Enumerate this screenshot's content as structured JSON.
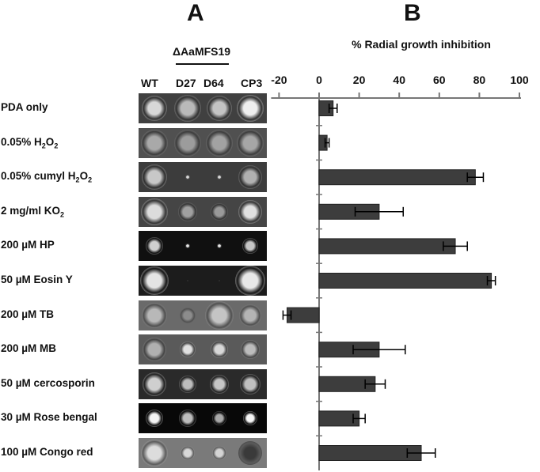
{
  "panels": {
    "a": "A",
    "b": "B"
  },
  "mutant_group_label": "ΔAaMFS19",
  "strains": [
    "WT",
    "D27",
    "D64",
    "CP3"
  ],
  "chart_data": {
    "type": "bar",
    "orientation": "horizontal",
    "title": "% Radial growth inhibition",
    "xlabel": "% Radial growth inhibition",
    "xlim": [
      -20,
      100
    ],
    "xticks": [
      "-20",
      "0",
      "20",
      "40",
      "60",
      "80",
      "100"
    ],
    "xtick_values": [
      -20,
      0,
      20,
      40,
      60,
      80,
      100
    ],
    "categories": [
      {
        "pre": "PDA only",
        "sub": "",
        "post": ""
      },
      {
        "pre": "0.05% H",
        "sub": "2",
        "post": "O",
        "sub2": "2"
      },
      {
        "pre": "0.05% cumyl H",
        "sub": "2",
        "post": "O",
        "sub2": "2"
      },
      {
        "pre": "2 mg/ml KO",
        "sub": "2",
        "post": ""
      },
      {
        "pre": "200 µM HP",
        "sub": "",
        "post": ""
      },
      {
        "pre": "50 µM Eosin Y",
        "sub": "",
        "post": ""
      },
      {
        "pre": "200 µM TB",
        "sub": "",
        "post": ""
      },
      {
        "pre": "200 µM MB",
        "sub": "",
        "post": ""
      },
      {
        "pre": "50 µM cercosporin",
        "sub": "",
        "post": ""
      },
      {
        "pre": "30 µM  Rose bengal",
        "sub": "",
        "post": ""
      },
      {
        "pre": "100 µM Congo red",
        "sub": "",
        "post": ""
      }
    ],
    "values": [
      7,
      4,
      78,
      30,
      68,
      86,
      -16,
      30,
      28,
      20,
      51
    ],
    "errors": [
      2,
      1,
      4,
      12,
      6,
      2,
      2,
      13,
      5,
      3,
      7
    ],
    "bar_color": "#3d3d3d",
    "grid": false,
    "legend": "none"
  },
  "plates": [
    {
      "bg": "#404040",
      "colonies": [
        {
          "c": "#d8d8d8",
          "r": 16
        },
        {
          "c": "#b9b9b9",
          "r": 17
        },
        {
          "c": "#c4c4c4",
          "r": 16
        },
        {
          "c": "#efefef",
          "r": 17
        }
      ]
    },
    {
      "bg": "#505050",
      "colonies": [
        {
          "c": "#a9a9a9",
          "r": 17
        },
        {
          "c": "#9c9c9c",
          "r": 17
        },
        {
          "c": "#a2a2a2",
          "r": 17
        },
        {
          "c": "#a6a6a6",
          "r": 17
        }
      ]
    },
    {
      "bg": "#3c3c3c",
      "colonies": [
        {
          "c": "#c8c8c8",
          "r": 16
        },
        {
          "c": "#d9d9d9",
          "r": 3
        },
        {
          "c": "#d9d9d9",
          "r": 3
        },
        {
          "c": "#b0b0b0",
          "r": 15
        }
      ]
    },
    {
      "bg": "#454545",
      "colonies": [
        {
          "c": "#dcdcdc",
          "r": 17
        },
        {
          "c": "#a0a0a0",
          "r": 12
        },
        {
          "c": "#9a9a9a",
          "r": 11
        },
        {
          "c": "#e0e0e0",
          "r": 15
        }
      ]
    },
    {
      "bg": "#101010",
      "colonies": [
        {
          "c": "#d0d0d0",
          "r": 11
        },
        {
          "c": "#e8e8e8",
          "r": 3
        },
        {
          "c": "#e8e8e8",
          "r": 3
        },
        {
          "c": "#c6c6c6",
          "r": 10
        }
      ]
    },
    {
      "bg": "#1c1c1c",
      "colonies": [
        {
          "c": "#e4e4e4",
          "r": 18
        },
        {
          "c": "#2a2a2a",
          "r": 2
        },
        {
          "c": "#2a2a2a",
          "r": 2
        },
        {
          "c": "#e8e8e8",
          "r": 19
        }
      ]
    },
    {
      "bg": "#6a6a6a",
      "colonies": [
        {
          "c": "#b8b8b8",
          "r": 16
        },
        {
          "c": "#8c8c8c",
          "r": 10
        },
        {
          "c": "#c4c4c4",
          "r": 18
        },
        {
          "c": "#b4b4b4",
          "r": 14
        }
      ]
    },
    {
      "bg": "#5a5a5a",
      "colonies": [
        {
          "c": "#b0b0b0",
          "r": 15
        },
        {
          "c": "#e0e0e0",
          "r": 10
        },
        {
          "c": "#d8d8d8",
          "r": 11
        },
        {
          "c": "#bcbcbc",
          "r": 12
        }
      ]
    },
    {
      "bg": "#2a2a2a",
      "colonies": [
        {
          "c": "#cfcfcf",
          "r": 15
        },
        {
          "c": "#bdbdbd",
          "r": 11
        },
        {
          "c": "#c6c6c6",
          "r": 12
        },
        {
          "c": "#c0c0c0",
          "r": 13
        }
      ]
    },
    {
      "bg": "#080808",
      "colonies": [
        {
          "c": "#f4f4f4",
          "r": 11
        },
        {
          "c": "#bdbdbd",
          "r": 11
        },
        {
          "c": "#a8a8a8",
          "r": 9
        },
        {
          "c": "#f6f6f6",
          "r": 9
        }
      ]
    },
    {
      "bg": "#7a7a7a",
      "colonies": [
        {
          "c": "#dcdcdc",
          "r": 17
        },
        {
          "c": "#d8d8d8",
          "r": 9
        },
        {
          "c": "#d4d4d4",
          "r": 9
        },
        {
          "c": "#3a3a3a",
          "r": 15
        }
      ]
    }
  ]
}
